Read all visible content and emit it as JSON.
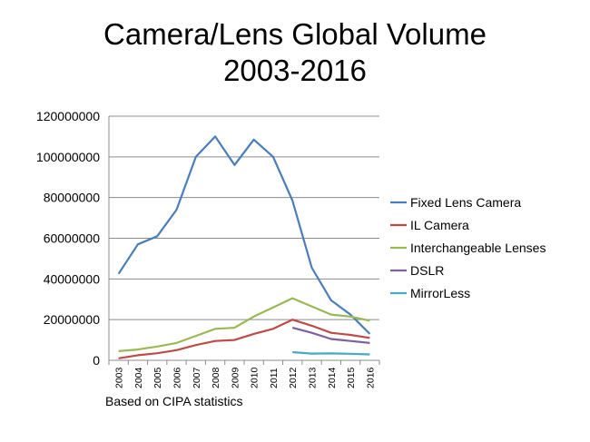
{
  "chart_data": {
    "type": "line",
    "title_lines": [
      "Camera/Lens Global Volume",
      "2003-2016"
    ],
    "xlabel": "",
    "ylabel": "",
    "ylim": [
      0,
      120000000
    ],
    "y_ticks": [
      0,
      20000000,
      40000000,
      60000000,
      80000000,
      100000000,
      120000000
    ],
    "y_tick_labels": [
      "0",
      "20000000",
      "40000000",
      "60000000",
      "80000000",
      "100000000",
      "120000000"
    ],
    "categories": [
      "2003",
      "2004",
      "2005",
      "2006",
      "2007",
      "2008",
      "2009",
      "2010",
      "2011",
      "2012",
      "2013",
      "2014",
      "2015",
      "2016"
    ],
    "grid": true,
    "legend_position": "right",
    "series": [
      {
        "name": "Fixed Lens Camera",
        "color": "#4a7ebb",
        "values": [
          42500000,
          57000000,
          61000000,
          74000000,
          100000000,
          110000000,
          96000000,
          108500000,
          100000000,
          78500000,
          45500000,
          29500000,
          22500000,
          13000000
        ]
      },
      {
        "name": "IL Camera",
        "color": "#be4b48",
        "values": [
          1000000,
          2500000,
          3500000,
          5000000,
          7500000,
          9500000,
          10000000,
          13000000,
          15500000,
          20000000,
          17000000,
          13500000,
          12500000,
          11000000
        ]
      },
      {
        "name": "Interchangeable Lenses",
        "color": "#98b954",
        "values": [
          4500000,
          5300000,
          6800000,
          8500000,
          12000000,
          15500000,
          16000000,
          21500000,
          26000000,
          30500000,
          26500000,
          22500000,
          21500000,
          19500000
        ]
      },
      {
        "name": "DSLR",
        "color": "#7d60a0",
        "values": [
          null,
          null,
          null,
          null,
          null,
          null,
          null,
          null,
          null,
          16000000,
          13500000,
          10500000,
          9500000,
          8500000
        ]
      },
      {
        "name": "MirrorLess",
        "color": "#46aac5",
        "values": [
          null,
          null,
          null,
          null,
          null,
          null,
          null,
          null,
          null,
          4000000,
          3300000,
          3400000,
          3200000,
          2900000
        ]
      }
    ],
    "footnote": "Based on CIPA statistics"
  }
}
